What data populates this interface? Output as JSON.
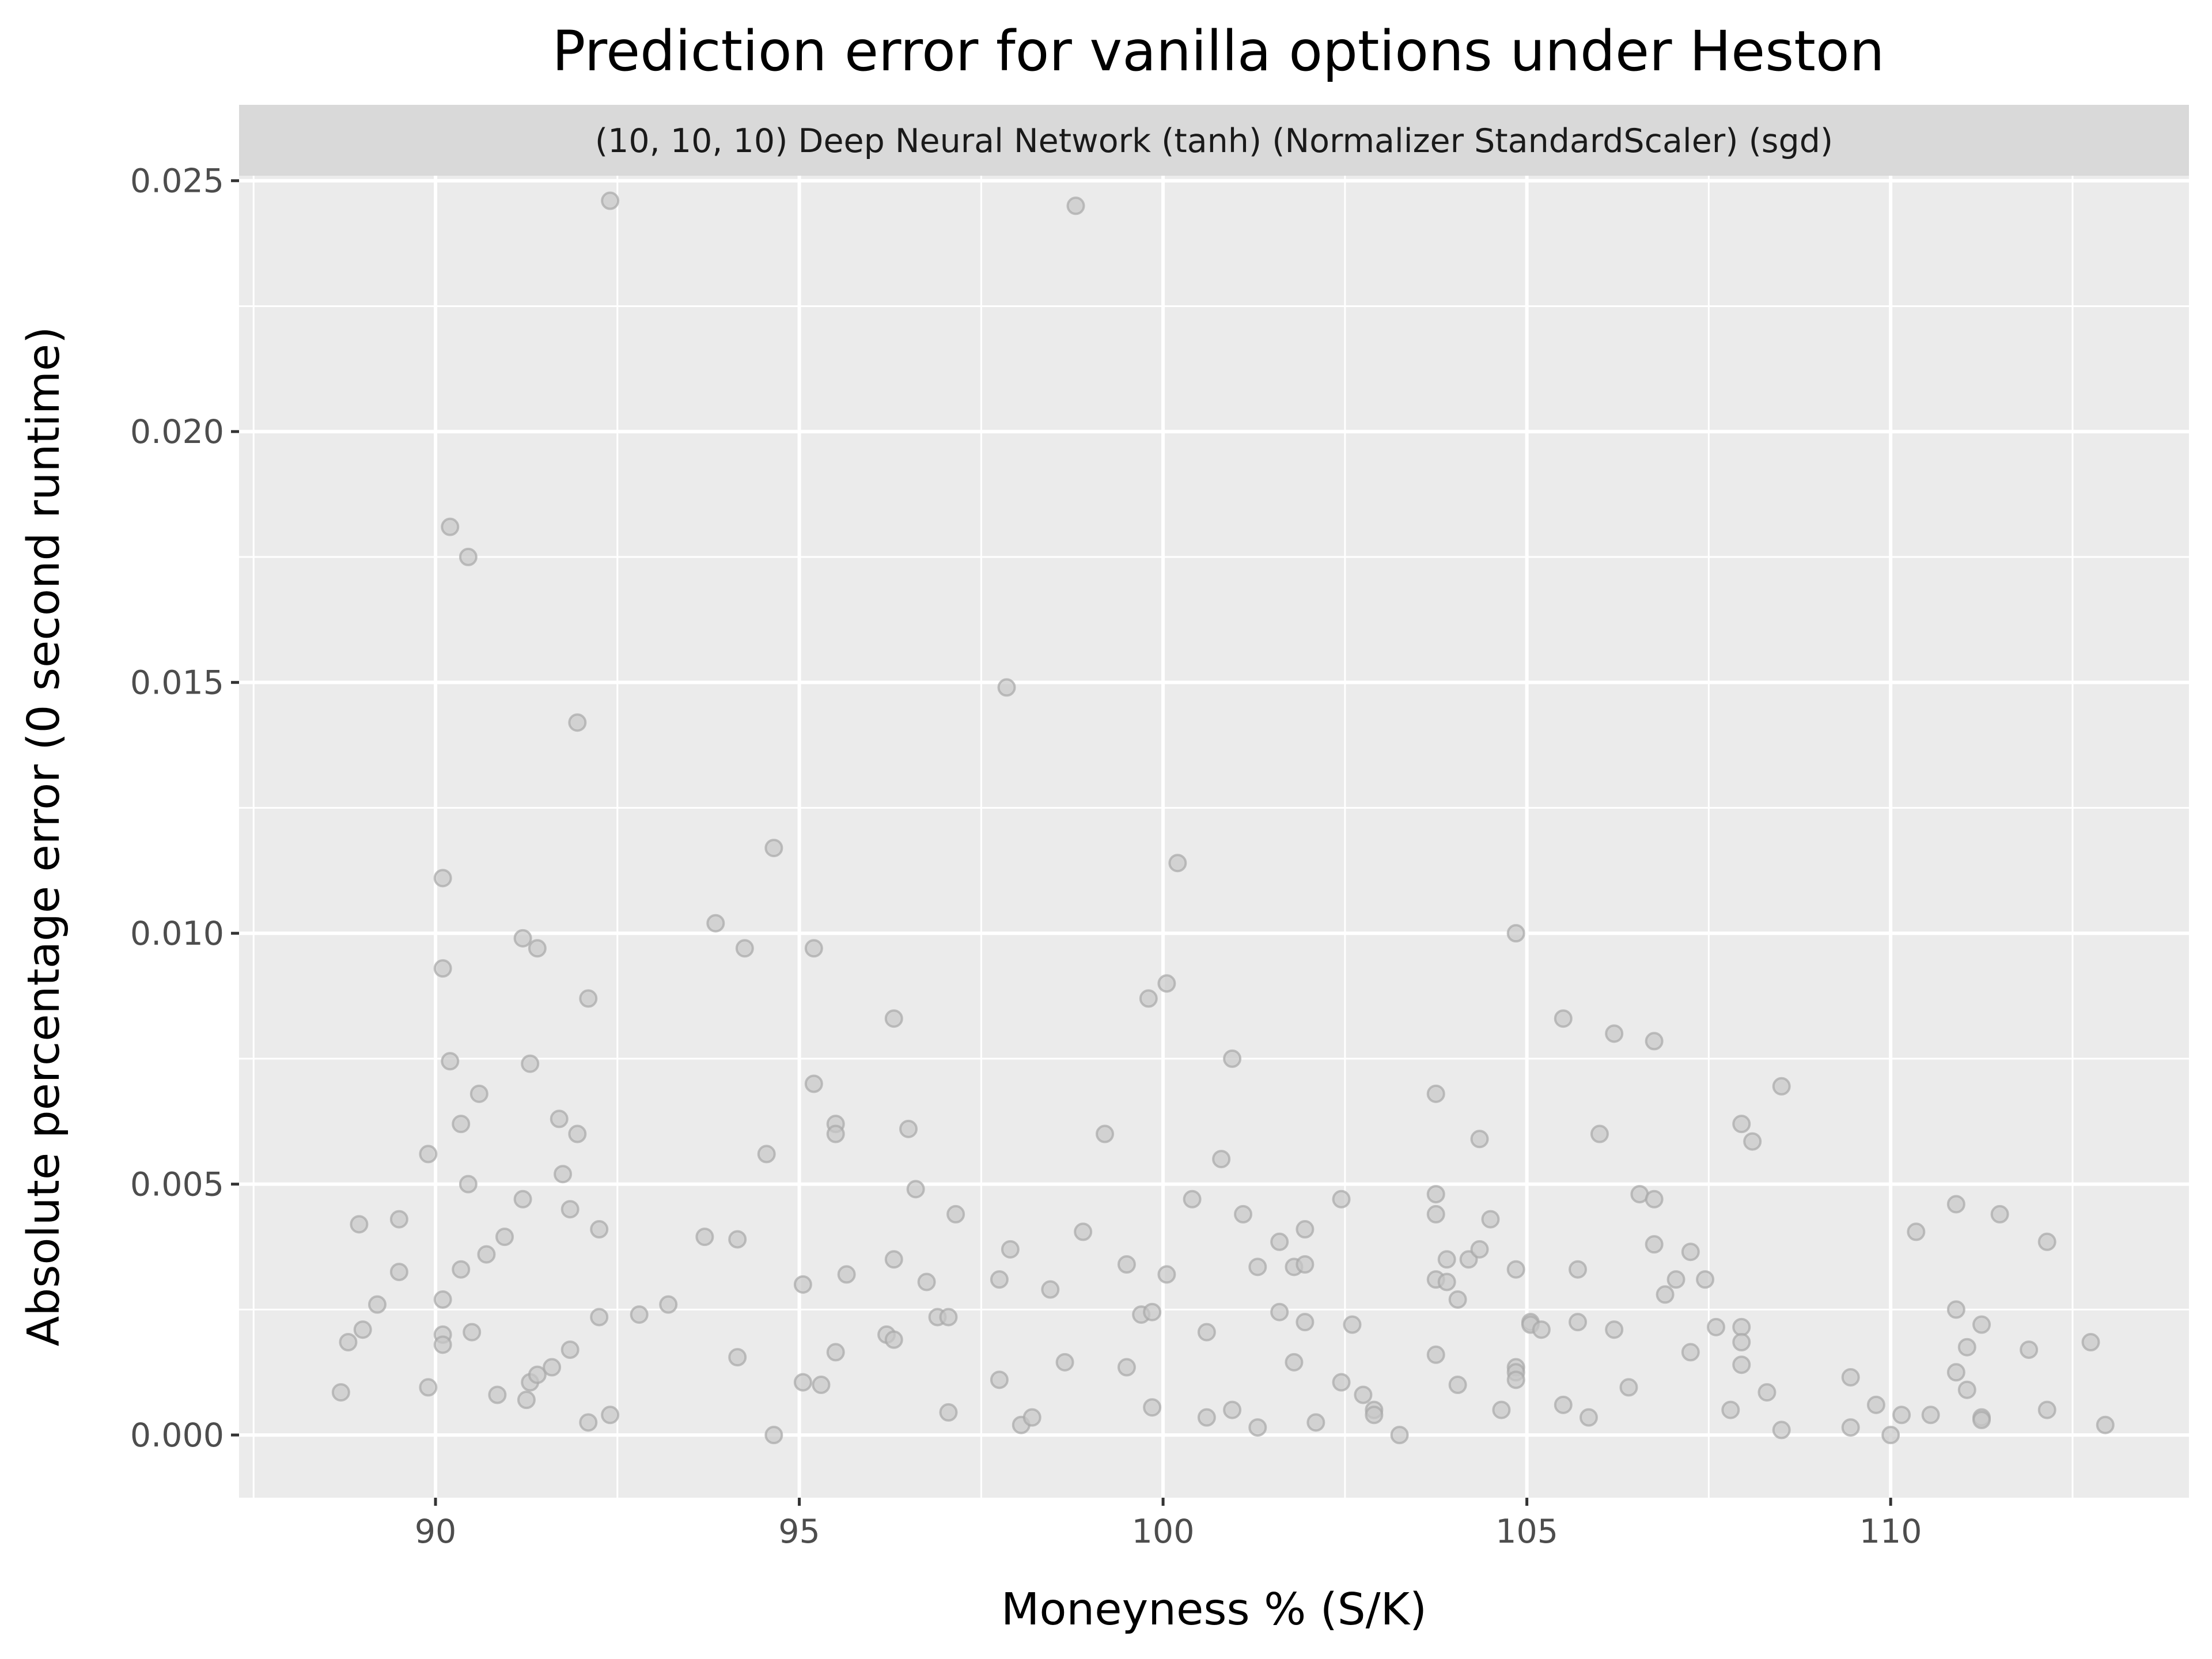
{
  "chart_data": {
    "type": "scatter",
    "title": "Prediction error for vanilla options under Heston",
    "facet_label": "(10, 10, 10) Deep Neural Network (tanh) (Normalizer StandardScaler) (sgd)",
    "xlabel": "Moneyness % (S/K)",
    "ylabel": "Absolute percentage error (0 second runtime)",
    "xlim": [
      87.3,
      114.1
    ],
    "ylim": [
      -0.00125,
      0.0251
    ],
    "x_ticks": [
      90,
      95,
      100,
      105,
      110
    ],
    "x_tick_labels": [
      "90",
      "95",
      "100",
      "105",
      "110"
    ],
    "y_ticks": [
      0.0,
      0.005,
      0.01,
      0.015,
      0.02,
      0.025
    ],
    "y_tick_labels": [
      "0.000",
      "0.005",
      "0.010",
      "0.015",
      "0.020",
      "0.025"
    ],
    "grid": true,
    "legend": "none",
    "colors": {
      "panel": "#ebebeb",
      "strip": "#d9d9d9",
      "grid": "#ffffff",
      "point_fill": "#c8c8c8",
      "point_stroke": "#a8a8a8",
      "tick": "#333333"
    },
    "points": [
      [
        88.7,
        0.00085
      ],
      [
        88.8,
        0.00185
      ],
      [
        88.95,
        0.0042
      ],
      [
        89.0,
        0.0021
      ],
      [
        89.2,
        0.0026
      ],
      [
        89.5,
        0.0043
      ],
      [
        89.5,
        0.00325
      ],
      [
        89.9,
        0.00095
      ],
      [
        89.9,
        0.0056
      ],
      [
        90.1,
        0.0111
      ],
      [
        90.1,
        0.0093
      ],
      [
        90.1,
        0.0027
      ],
      [
        90.1,
        0.002
      ],
      [
        90.1,
        0.0018
      ],
      [
        90.2,
        0.0181
      ],
      [
        90.2,
        0.00745
      ],
      [
        90.35,
        0.0033
      ],
      [
        90.35,
        0.0062
      ],
      [
        90.45,
        0.0175
      ],
      [
        90.45,
        0.005
      ],
      [
        90.5,
        0.00205
      ],
      [
        90.6,
        0.0068
      ],
      [
        90.7,
        0.0036
      ],
      [
        90.85,
        0.0008
      ],
      [
        90.95,
        0.00395
      ],
      [
        91.2,
        0.0099
      ],
      [
        91.2,
        0.0047
      ],
      [
        91.25,
        0.0007
      ],
      [
        91.3,
        0.0074
      ],
      [
        91.3,
        0.00105
      ],
      [
        91.4,
        0.0097
      ],
      [
        91.4,
        0.0012
      ],
      [
        91.6,
        0.00135
      ],
      [
        91.7,
        0.0063
      ],
      [
        91.75,
        0.0052
      ],
      [
        91.85,
        0.0045
      ],
      [
        91.85,
        0.0017
      ],
      [
        91.95,
        0.0142
      ],
      [
        91.95,
        0.006
      ],
      [
        92.1,
        0.0087
      ],
      [
        92.1,
        0.00025
      ],
      [
        92.25,
        0.0041
      ],
      [
        92.25,
        0.00235
      ],
      [
        92.4,
        0.0246
      ],
      [
        92.4,
        0.0004
      ],
      [
        92.8,
        0.0024
      ],
      [
        93.2,
        0.0026
      ],
      [
        93.7,
        0.00395
      ],
      [
        93.85,
        0.0102
      ],
      [
        94.15,
        0.0039
      ],
      [
        94.15,
        0.00155
      ],
      [
        94.25,
        0.0097
      ],
      [
        94.55,
        0.0056
      ],
      [
        94.65,
        0.0117
      ],
      [
        94.65,
        0.0
      ],
      [
        95.05,
        0.003
      ],
      [
        95.05,
        0.00105
      ],
      [
        95.2,
        0.0097
      ],
      [
        95.2,
        0.007
      ],
      [
        95.3,
        0.001
      ],
      [
        95.5,
        0.0062
      ],
      [
        95.5,
        0.006
      ],
      [
        95.5,
        0.00165
      ],
      [
        95.65,
        0.0032
      ],
      [
        96.2,
        0.002
      ],
      [
        96.3,
        0.0083
      ],
      [
        96.3,
        0.0035
      ],
      [
        96.3,
        0.0019
      ],
      [
        96.5,
        0.0061
      ],
      [
        96.6,
        0.0049
      ],
      [
        96.75,
        0.00305
      ],
      [
        96.9,
        0.00235
      ],
      [
        97.05,
        0.00235
      ],
      [
        97.05,
        0.00045
      ],
      [
        97.15,
        0.0044
      ],
      [
        97.75,
        0.0031
      ],
      [
        97.75,
        0.0011
      ],
      [
        97.85,
        0.0149
      ],
      [
        97.9,
        0.0037
      ],
      [
        98.05,
        0.0002
      ],
      [
        98.2,
        0.00035
      ],
      [
        98.45,
        0.0029
      ],
      [
        98.65,
        0.00145
      ],
      [
        98.8,
        0.0245
      ],
      [
        98.9,
        0.00405
      ],
      [
        99.2,
        0.006
      ],
      [
        99.5,
        0.00135
      ],
      [
        99.5,
        0.0034
      ],
      [
        99.7,
        0.0024
      ],
      [
        99.8,
        0.0087
      ],
      [
        99.85,
        0.00245
      ],
      [
        99.85,
        0.00055
      ],
      [
        100.05,
        0.009
      ],
      [
        100.05,
        0.0032
      ],
      [
        100.2,
        0.0114
      ],
      [
        100.4,
        0.0047
      ],
      [
        100.6,
        0.00205
      ],
      [
        100.6,
        0.00035
      ],
      [
        100.8,
        0.0055
      ],
      [
        100.95,
        0.0075
      ],
      [
        100.95,
        0.0005
      ],
      [
        101.1,
        0.0044
      ],
      [
        101.3,
        0.00335
      ],
      [
        101.3,
        0.00015
      ],
      [
        101.6,
        0.00385
      ],
      [
        101.6,
        0.00245
      ],
      [
        101.8,
        0.00335
      ],
      [
        101.8,
        0.00145
      ],
      [
        101.95,
        0.0041
      ],
      [
        101.95,
        0.0034
      ],
      [
        101.95,
        0.00225
      ],
      [
        102.1,
        0.00025
      ],
      [
        102.45,
        0.0047
      ],
      [
        102.45,
        0.00105
      ],
      [
        102.6,
        0.0022
      ],
      [
        102.75,
        0.0008
      ],
      [
        102.9,
        0.0005
      ],
      [
        102.9,
        0.0004
      ],
      [
        103.25,
        0.0
      ],
      [
        103.75,
        0.0068
      ],
      [
        103.75,
        0.0048
      ],
      [
        103.75,
        0.0044
      ],
      [
        103.75,
        0.0031
      ],
      [
        103.75,
        0.0016
      ],
      [
        103.9,
        0.0035
      ],
      [
        103.9,
        0.00305
      ],
      [
        104.05,
        0.0027
      ],
      [
        104.05,
        0.001
      ],
      [
        104.2,
        0.0035
      ],
      [
        104.35,
        0.0059
      ],
      [
        104.35,
        0.0037
      ],
      [
        104.5,
        0.0043
      ],
      [
        104.65,
        0.0005
      ],
      [
        104.85,
        0.01
      ],
      [
        104.85,
        0.0033
      ],
      [
        104.85,
        0.00135
      ],
      [
        104.85,
        0.00125
      ],
      [
        104.85,
        0.0011
      ],
      [
        105.05,
        0.00225
      ],
      [
        105.05,
        0.0022
      ],
      [
        105.2,
        0.0021
      ],
      [
        105.5,
        0.0083
      ],
      [
        105.5,
        0.0006
      ],
      [
        105.7,
        0.0033
      ],
      [
        105.7,
        0.00225
      ],
      [
        105.85,
        0.00035
      ],
      [
        106.0,
        0.006
      ],
      [
        106.2,
        0.008
      ],
      [
        106.2,
        0.0021
      ],
      [
        106.4,
        0.00095
      ],
      [
        106.55,
        0.0048
      ],
      [
        106.75,
        0.00785
      ],
      [
        106.75,
        0.0047
      ],
      [
        106.75,
        0.0038
      ],
      [
        106.9,
        0.0028
      ],
      [
        107.05,
        0.0031
      ],
      [
        107.25,
        0.00365
      ],
      [
        107.25,
        0.00165
      ],
      [
        107.45,
        0.0031
      ],
      [
        107.6,
        0.00215
      ],
      [
        107.8,
        0.0005
      ],
      [
        107.95,
        0.0062
      ],
      [
        107.95,
        0.00215
      ],
      [
        107.95,
        0.00185
      ],
      [
        107.95,
        0.0014
      ],
      [
        108.1,
        0.00585
      ],
      [
        108.3,
        0.00085
      ],
      [
        108.5,
        0.00695
      ],
      [
        108.5,
        0.0001
      ],
      [
        109.45,
        0.00115
      ],
      [
        109.45,
        0.00015
      ],
      [
        109.8,
        0.0006
      ],
      [
        110.0,
        0.0
      ],
      [
        110.15,
        0.0004
      ],
      [
        110.35,
        0.00405
      ],
      [
        110.55,
        0.0004
      ],
      [
        110.9,
        0.0046
      ],
      [
        110.9,
        0.0025
      ],
      [
        110.9,
        0.00125
      ],
      [
        111.05,
        0.00175
      ],
      [
        111.05,
        0.0009
      ],
      [
        111.25,
        0.0022
      ],
      [
        111.25,
        0.00035
      ],
      [
        111.25,
        0.0003
      ],
      [
        111.5,
        0.0044
      ],
      [
        111.9,
        0.0017
      ],
      [
        112.15,
        0.00385
      ],
      [
        112.15,
        0.0005
      ],
      [
        112.75,
        0.00185
      ],
      [
        112.95,
        0.0002
      ]
    ]
  }
}
